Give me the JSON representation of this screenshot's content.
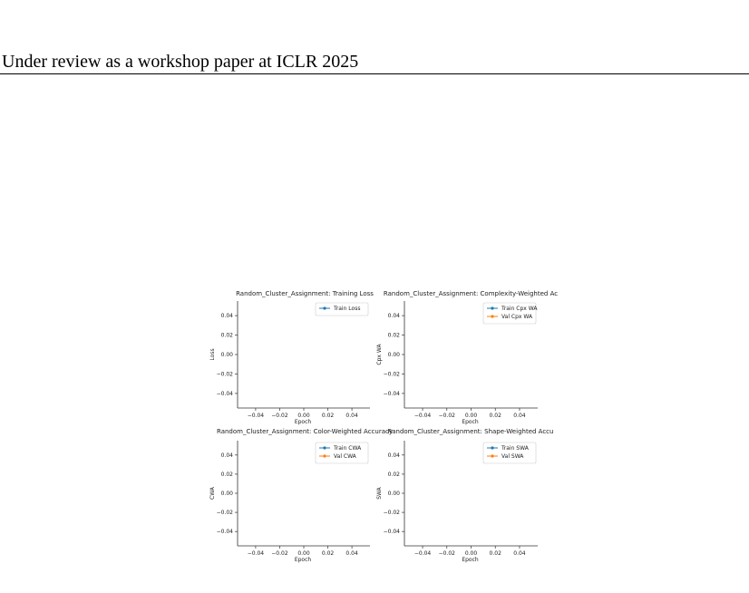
{
  "header": {
    "text": "Under review as a workshop paper at ICLR 2025"
  },
  "colors": {
    "train": "#1f77b4",
    "val": "#ff7f0e",
    "axis": "#333333"
  },
  "chart_data": [
    {
      "type": "line",
      "title": "Random_Cluster_Assignment: Training Loss",
      "xlabel": "Epoch",
      "ylabel": "Loss",
      "xlim": [
        -0.055,
        0.055
      ],
      "ylim": [
        -0.055,
        0.055
      ],
      "xticks": [
        "−0.04",
        "−0.02",
        "0.00",
        "0.02",
        "0.04"
      ],
      "yticks": [
        "0.04",
        "0.02",
        "0.00",
        "−0.02",
        "−0.04"
      ],
      "series": [
        {
          "name": "Train Loss",
          "x": [],
          "values": []
        }
      ],
      "legend": "top-right"
    },
    {
      "type": "line",
      "title": "Random_Cluster_Assignment: Complexity-Weighted Ac",
      "xlabel": "Epoch",
      "ylabel": "Cpx WA",
      "xlim": [
        -0.055,
        0.055
      ],
      "ylim": [
        -0.055,
        0.055
      ],
      "xticks": [
        "−0.04",
        "−0.02",
        "0.00",
        "0.02",
        "0.04"
      ],
      "yticks": [
        "0.04",
        "0.02",
        "0.00",
        "−0.02",
        "−0.04"
      ],
      "series": [
        {
          "name": "Train Cpx WA",
          "x": [],
          "values": []
        },
        {
          "name": "Val Cpx WA",
          "x": [],
          "values": []
        }
      ],
      "legend": "top-right"
    },
    {
      "type": "line",
      "title": "Random_Cluster_Assignment: Color-Weighted Accuracy",
      "xlabel": "Epoch",
      "ylabel": "CWA",
      "xlim": [
        -0.055,
        0.055
      ],
      "ylim": [
        -0.055,
        0.055
      ],
      "xticks": [
        "−0.04",
        "−0.02",
        "0.00",
        "0.02",
        "0.04"
      ],
      "yticks": [
        "0.04",
        "0.02",
        "0.00",
        "−0.02",
        "−0.04"
      ],
      "series": [
        {
          "name": "Train CWA",
          "x": [],
          "values": []
        },
        {
          "name": "Val CWA",
          "x": [],
          "values": []
        }
      ],
      "legend": "top-right"
    },
    {
      "type": "line",
      "title": "Random_Cluster_Assignment: Shape-Weighted Accu",
      "xlabel": "Epoch",
      "ylabel": "SWA",
      "xlim": [
        -0.055,
        0.055
      ],
      "ylim": [
        -0.055,
        0.055
      ],
      "xticks": [
        "−0.04",
        "−0.02",
        "0.00",
        "0.02",
        "0.04"
      ],
      "yticks": [
        "0.04",
        "0.02",
        "0.00",
        "−0.02",
        "−0.04"
      ],
      "series": [
        {
          "name": "Train SWA",
          "x": [],
          "values": []
        },
        {
          "name": "Val SWA",
          "x": [],
          "values": []
        }
      ],
      "legend": "top-right"
    }
  ]
}
